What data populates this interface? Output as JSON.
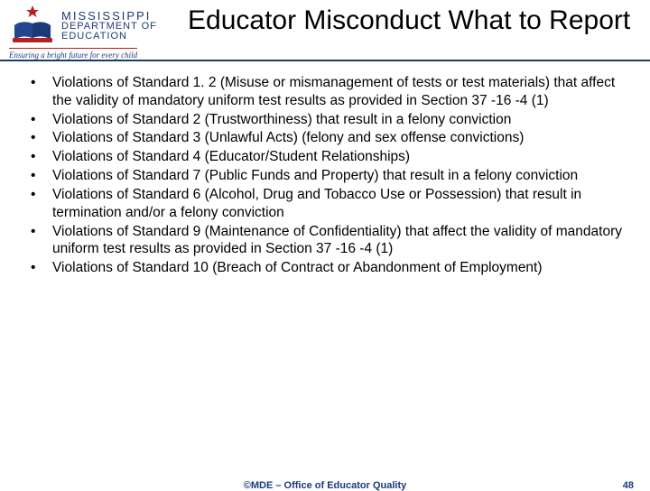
{
  "logo": {
    "line1": "MISSISSIPPI",
    "line2": "DEPARTMENT OF",
    "line3": "EDUCATION",
    "tagline": "Ensuring a bright future for every child",
    "star_color": "#b22222",
    "book_color": "#1a3a7a",
    "text_color": "#1a3a7a"
  },
  "title": "Educator Misconduct What to Report",
  "bullets": [
    "Violations of Standard 1. 2 (Misuse or mismanagement of tests or test materials) that affect the validity of mandatory uniform test results as provided in Section 37 -16 -4 (1)",
    " Violations of Standard 2 (Trustworthiness) that result in a felony conviction",
    " Violations of Standard 3 (Unlawful Acts) (felony and sex offense convictions)",
    " Violations of Standard 4 (Educator/Student Relationships)",
    " Violations of Standard 7 (Public Funds and Property) that result in a felony conviction",
    " Violations of Standard 6 (Alcohol, Drug and Tobacco Use or Possession) that result in termination and/or a felony conviction",
    " Violations of Standard 9 (Maintenance of Confidentiality) that affect the validity of mandatory uniform test results as provided in Section 37 -16 -4 (1)",
    " Violations of Standard 10 (Breach of Contract or Abandonment of Employment)"
  ],
  "footer": {
    "center": "©MDE – Office of Educator Quality",
    "page": "48"
  },
  "colors": {
    "rule": "#1a3a7a",
    "text": "#000000",
    "footer": "#1a3a7a"
  }
}
